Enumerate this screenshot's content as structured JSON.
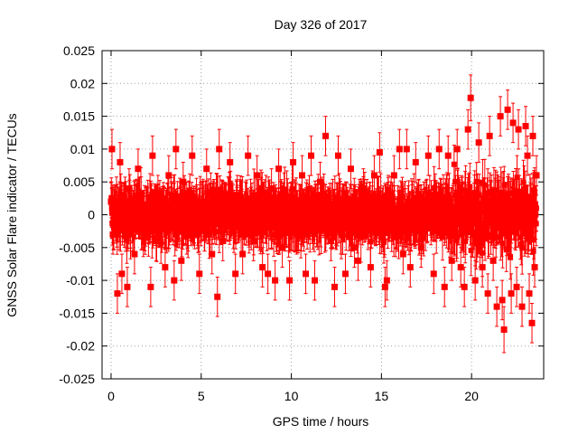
{
  "colors": {
    "series": "#ff0000",
    "axis": "#000000",
    "grid": "#a0a0a0",
    "background": "#ffffff"
  },
  "chart_data": {
    "type": "scatter",
    "title": "Day 326 of 2017",
    "xlabel": "GPS time / hours",
    "ylabel": "GNSS Solar Flare indicator / TECUs",
    "xlim": [
      -0.5,
      24
    ],
    "ylim": [
      -0.025,
      0.025
    ],
    "xticks": [
      0,
      5,
      10,
      15,
      20
    ],
    "xtick_labels": [
      "0",
      "5",
      "10",
      "15",
      "20"
    ],
    "yticks": [
      -0.025,
      -0.02,
      -0.015,
      -0.01,
      -0.005,
      0,
      0.005,
      0.01,
      0.015,
      0.02,
      0.025
    ],
    "ytick_labels": [
      "-0.025",
      "-0.02",
      "-0.015",
      "-0.01",
      "-0.005",
      "0",
      "0.005",
      "0.01",
      "0.015",
      "0.02",
      "0.025"
    ],
    "grid": true,
    "marker": "square",
    "error_bars": true,
    "series": [
      {
        "x": [
          0.0,
          0.05,
          0.1,
          0.35,
          0.5,
          0.6,
          0.9,
          1.0,
          1.3,
          1.5,
          1.8,
          2.2,
          2.3,
          2.5,
          2.6,
          3.0,
          3.2,
          3.5,
          3.6,
          3.7,
          3.9,
          4.0,
          4.2,
          4.5,
          4.9,
          5.1,
          5.3,
          5.6,
          5.9,
          6.0,
          6.2,
          6.6,
          6.9,
          7.0,
          7.3,
          7.6,
          7.9,
          8.1,
          8.4,
          8.7,
          8.9,
          9.1,
          9.3,
          9.5,
          9.9,
          10.1,
          10.3,
          10.6,
          10.8,
          11.1,
          11.3,
          11.6,
          11.9,
          12.2,
          12.4,
          12.6,
          13.0,
          13.3,
          13.5,
          13.7,
          14.0,
          14.4,
          14.6,
          14.9,
          15.2,
          15.3,
          15.7,
          16.0,
          16.2,
          16.4,
          16.6,
          16.9,
          17.2,
          17.6,
          17.9,
          18.2,
          18.5,
          18.7,
          18.9,
          19.2,
          19.4,
          19.6,
          19.8,
          19.95,
          20.2,
          20.4,
          20.6,
          20.9,
          21.0,
          21.2,
          21.4,
          21.6,
          21.7,
          21.8,
          22.0,
          22.2,
          22.3,
          22.5,
          22.6,
          22.8,
          23.0,
          23.1,
          23.2,
          23.35,
          23.4,
          23.5,
          23.6
        ],
        "y": [
          0.002,
          0.01,
          -0.003,
          -0.012,
          0.008,
          -0.009,
          -0.011,
          0.004,
          -0.006,
          0.007,
          -0.002,
          -0.011,
          0.009,
          -0.004,
          0.003,
          -0.008,
          0.006,
          -0.01,
          0.01,
          0.001,
          -0.007,
          0.005,
          -0.003,
          0.009,
          -0.009,
          0.002,
          0.007,
          -0.006,
          -0.0125,
          0.01,
          -0.004,
          0.008,
          -0.009,
          0.003,
          -0.006,
          0.009,
          -0.004,
          0.006,
          -0.008,
          -0.009,
          0.004,
          -0.01,
          0.007,
          -0.005,
          -0.01,
          0.008,
          -0.003,
          0.006,
          -0.009,
          0.009,
          -0.01,
          0.005,
          0.012,
          -0.004,
          -0.011,
          0.009,
          -0.009,
          0.007,
          -0.005,
          -0.007,
          0.004,
          -0.008,
          0.006,
          0.0095,
          -0.011,
          -0.01,
          0.006,
          0.01,
          -0.006,
          0.01,
          -0.008,
          0.008,
          -0.005,
          0.009,
          -0.009,
          0.01,
          -0.011,
          0.009,
          -0.007,
          0.01,
          -0.008,
          -0.011,
          0.013,
          0.0178,
          -0.01,
          0.011,
          -0.008,
          -0.012,
          0.012,
          -0.007,
          -0.014,
          0.015,
          -0.013,
          -0.0175,
          0.016,
          -0.012,
          0.014,
          -0.011,
          0.013,
          -0.014,
          0.0135,
          0.009,
          -0.012,
          -0.0165,
          0.012,
          -0.008,
          0.006
        ],
        "err": [
          0.003,
          0.003,
          0.003,
          0.003,
          0.003,
          0.003,
          0.003,
          0.003,
          0.003,
          0.003,
          0.003,
          0.003,
          0.003,
          0.003,
          0.003,
          0.003,
          0.003,
          0.003,
          0.003,
          0.003,
          0.003,
          0.003,
          0.003,
          0.003,
          0.003,
          0.003,
          0.003,
          0.003,
          0.003,
          0.003,
          0.003,
          0.003,
          0.003,
          0.003,
          0.003,
          0.003,
          0.003,
          0.003,
          0.003,
          0.003,
          0.003,
          0.003,
          0.003,
          0.003,
          0.003,
          0.003,
          0.003,
          0.003,
          0.003,
          0.003,
          0.003,
          0.003,
          0.003,
          0.003,
          0.003,
          0.003,
          0.003,
          0.003,
          0.003,
          0.003,
          0.003,
          0.003,
          0.003,
          0.003,
          0.003,
          0.003,
          0.003,
          0.003,
          0.003,
          0.003,
          0.003,
          0.003,
          0.003,
          0.003,
          0.003,
          0.003,
          0.003,
          0.003,
          0.003,
          0.003,
          0.003,
          0.003,
          0.003,
          0.0035,
          0.003,
          0.003,
          0.003,
          0.003,
          0.003,
          0.003,
          0.003,
          0.003,
          0.003,
          0.0035,
          0.003,
          0.003,
          0.003,
          0.003,
          0.003,
          0.003,
          0.003,
          0.003,
          0.003,
          0.003,
          0.003,
          0.003,
          0.003
        ]
      }
    ]
  }
}
